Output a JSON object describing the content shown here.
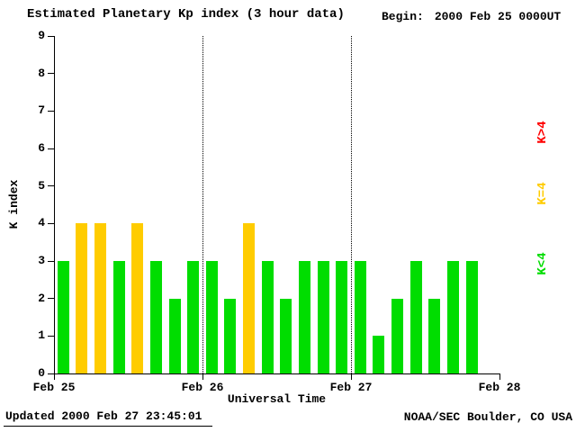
{
  "title": "Estimated Planetary Kp index (3 hour data)",
  "begin": {
    "label": "Begin:",
    "value": "2000 Feb 25 0000UT"
  },
  "ylabel": "K index",
  "xlabel": "Universal Time",
  "updated": "Updated 2000 Feb 27 23:45:01",
  "credit": "NOAA/SEC Boulder, CO USA",
  "legend": [
    {
      "label": "K>4",
      "color": "#ff0000"
    },
    {
      "label": "K=4",
      "color": "#ffcc00"
    },
    {
      "label": "K<4",
      "color": "#00dd00"
    }
  ],
  "chart_data": {
    "type": "bar",
    "title": "Estimated Planetary Kp index (3 hour data)",
    "xlabel": "Universal Time",
    "ylabel": "K index",
    "ylim": [
      0,
      9
    ],
    "yticks": [
      0,
      1,
      2,
      3,
      4,
      5,
      6,
      7,
      8,
      9
    ],
    "xticks": [
      "Feb 25",
      "Feb 26",
      "Feb 27",
      "Feb 28"
    ],
    "slots_per_day": 8,
    "bar_interval_hours": 3,
    "values": [
      3,
      4,
      4,
      3,
      4,
      3,
      2,
      3,
      3,
      2,
      4,
      3,
      2,
      3,
      3,
      3,
      3,
      1,
      2,
      3,
      2,
      3,
      3
    ],
    "colors_rule": {
      "lt4": "#00dd00",
      "eq4": "#ffcc00",
      "gt4": "#ff0000"
    },
    "grid": "dotted vertical lines at day boundaries",
    "legend_position": "right margin, rotated"
  }
}
